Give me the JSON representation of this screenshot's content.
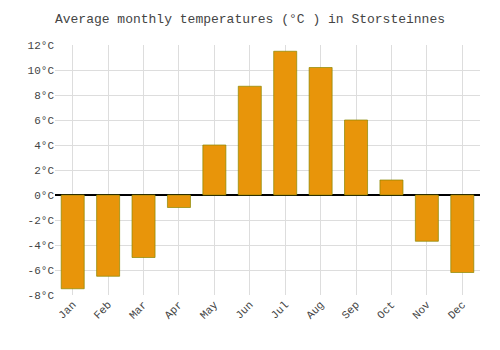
{
  "chart_data": {
    "type": "bar",
    "title": "Average monthly temperatures (°C ) in Storsteinnes",
    "categories": [
      "Jan",
      "Feb",
      "Mar",
      "Apr",
      "May",
      "Jun",
      "Jul",
      "Aug",
      "Sep",
      "Oct",
      "Nov",
      "Dec"
    ],
    "values": [
      -7.5,
      -6.5,
      -5.0,
      -1.0,
      4.0,
      8.7,
      11.5,
      10.2,
      6.0,
      1.2,
      -3.7,
      -6.2
    ],
    "color": "#E8950A",
    "ylim": [
      -8,
      12
    ],
    "yticks": [
      {
        "value": -8,
        "label": "-8°C"
      },
      {
        "value": -6,
        "label": "-6°C"
      },
      {
        "value": -4,
        "label": "-4°C"
      },
      {
        "value": -2,
        "label": "-2°C"
      },
      {
        "value": 0,
        "label": "0°C"
      },
      {
        "value": 2,
        "label": "2°C"
      },
      {
        "value": 4,
        "label": "4°C"
      },
      {
        "value": 6,
        "label": "6°C"
      },
      {
        "value": 8,
        "label": "8°C"
      },
      {
        "value": 10,
        "label": "10°C"
      },
      {
        "value": 12,
        "label": "12°C"
      }
    ],
    "grid": true
  }
}
